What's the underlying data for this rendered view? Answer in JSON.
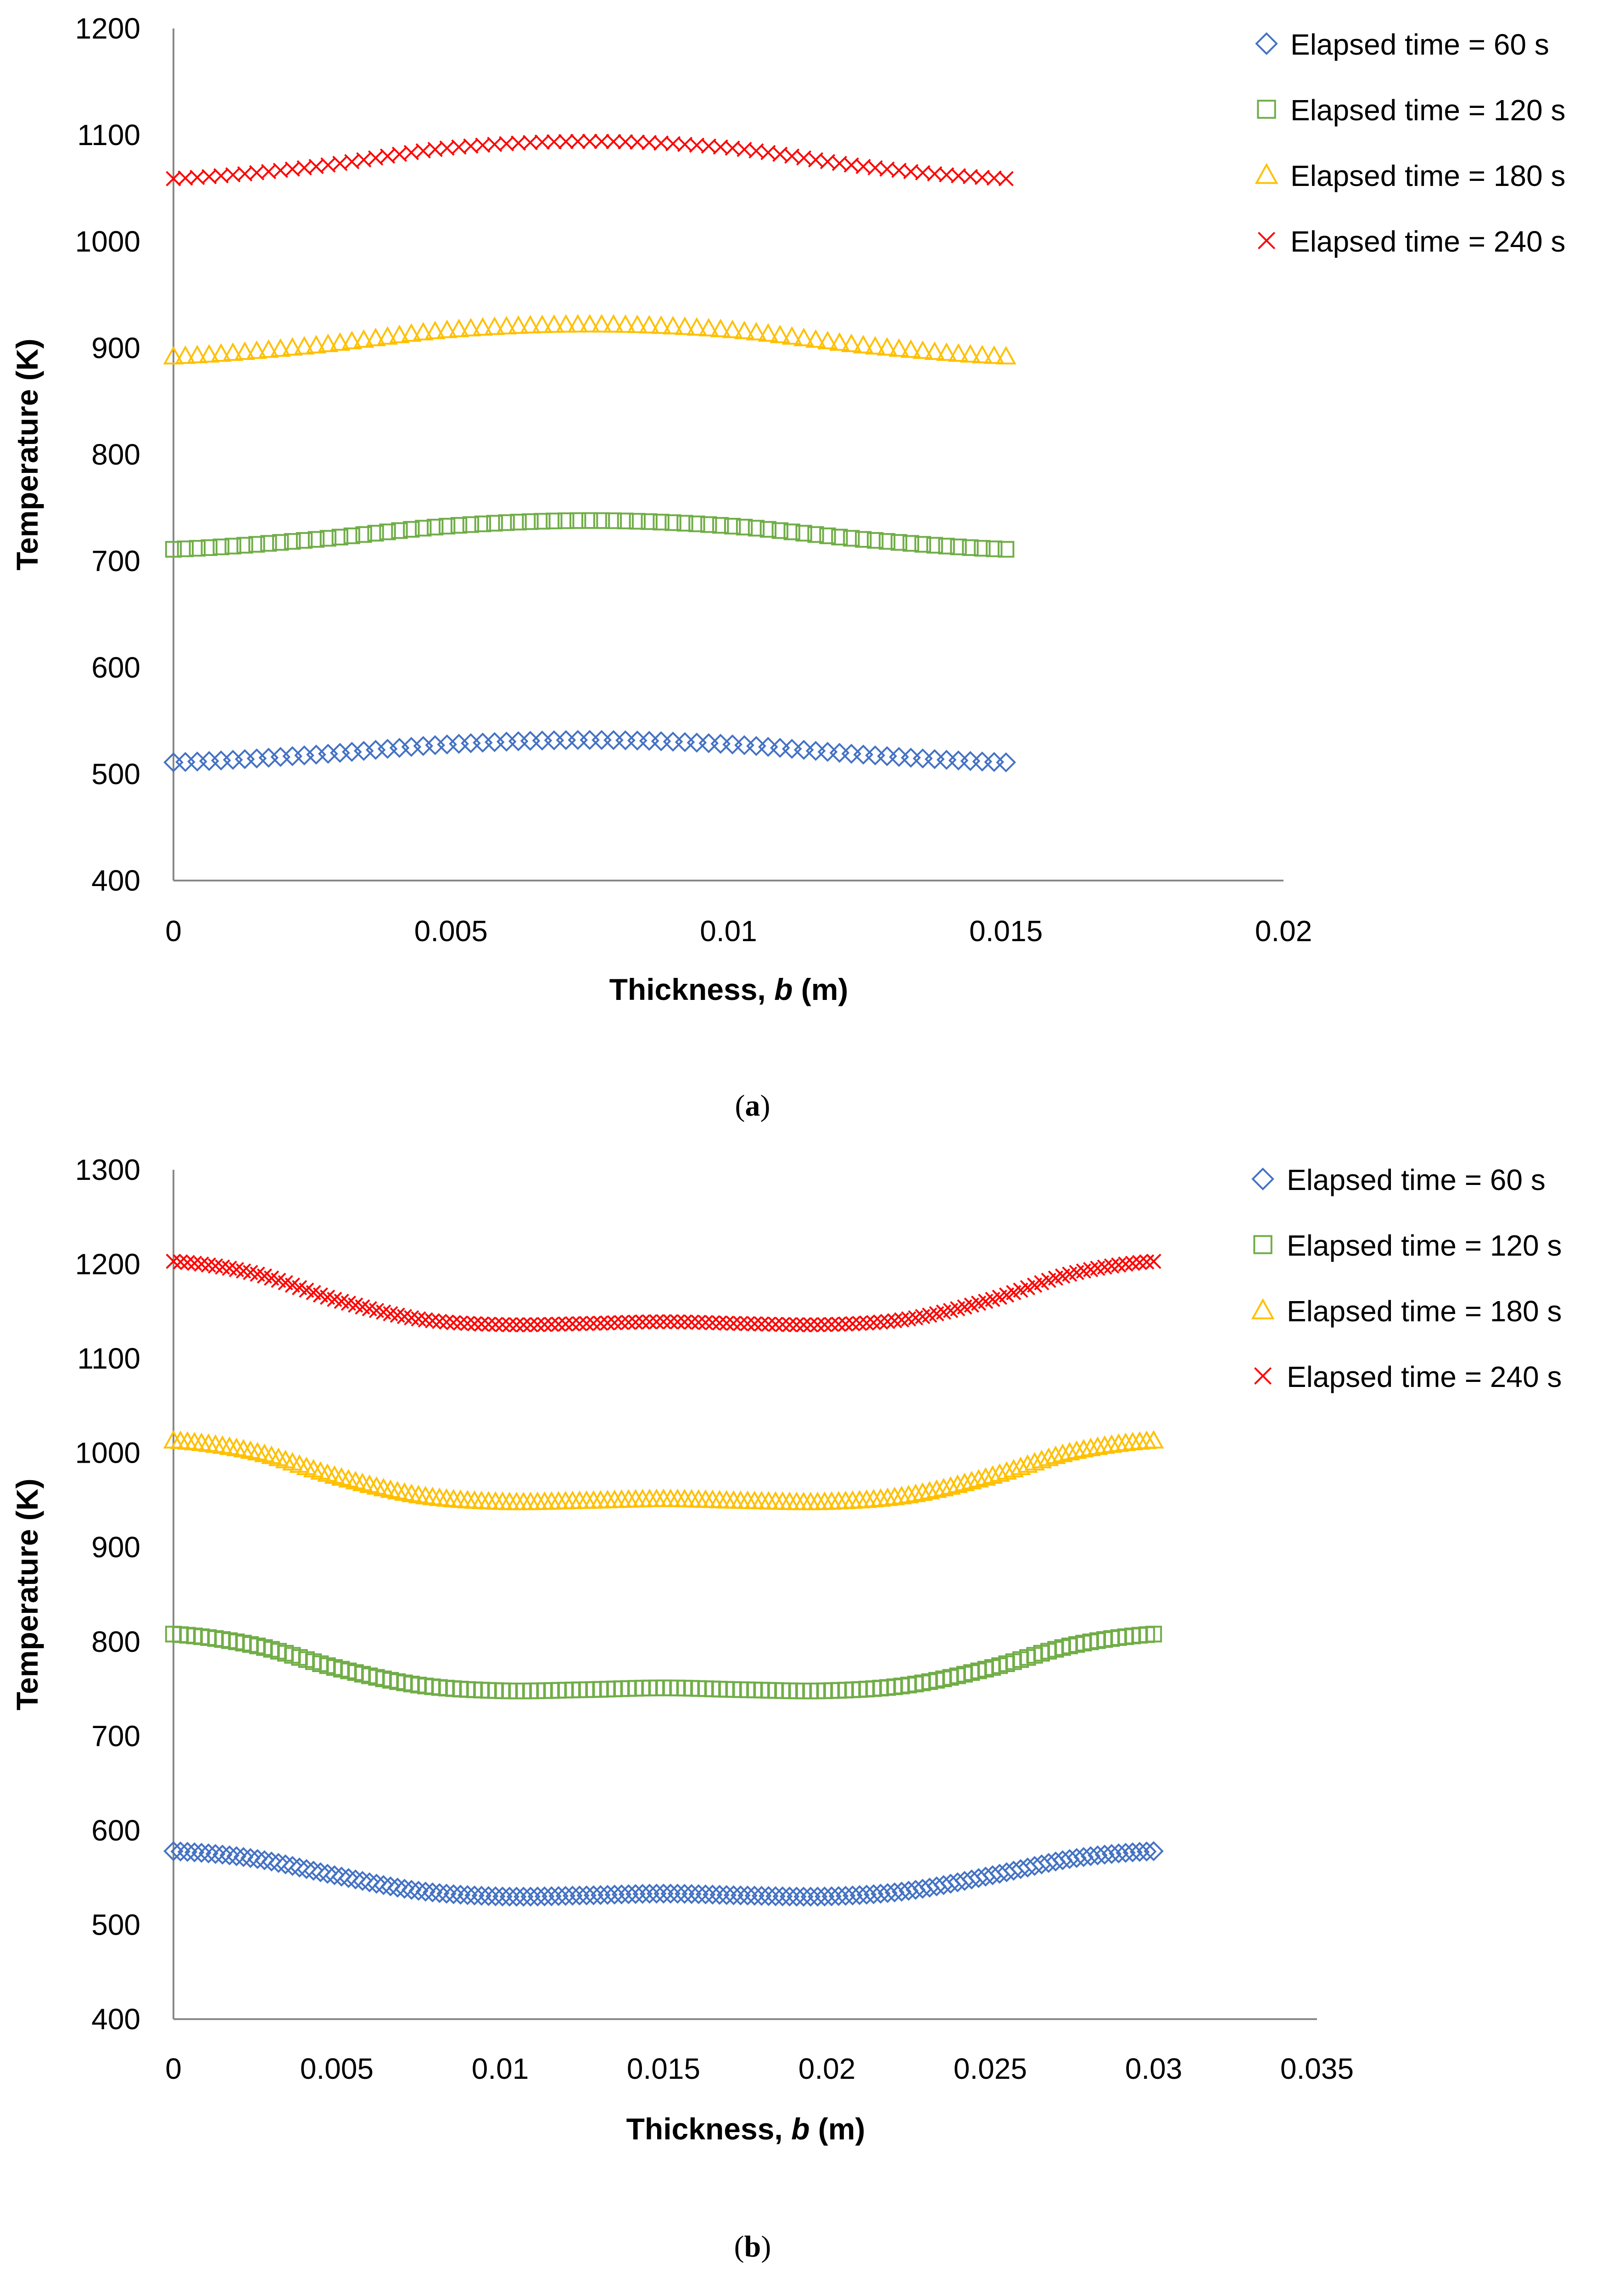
{
  "chart_data": [
    {
      "type": "scatter",
      "panel_label": "a",
      "title": "",
      "xlabel": "Thickness, b (m)",
      "xlabel_parts": [
        "Thickness, ",
        "b",
        " (m)"
      ],
      "ylabel": "Temperature (K)",
      "xlim": [
        0,
        0.02
      ],
      "ylim": [
        400,
        1200
      ],
      "xticks": [
        "0",
        "0.005",
        "0.01",
        "0.015",
        "0.02"
      ],
      "yticks": [
        "400",
        "500",
        "600",
        "700",
        "800",
        "900",
        "1000",
        "1100",
        "1200"
      ],
      "x_range_data": [
        0,
        0.015
      ],
      "grid": false,
      "legend_position": "top-right",
      "series": [
        {
          "name": "Elapsed time = 60 s",
          "label": "Elapsed time = 60 s",
          "marker": "diamond",
          "color": "#4472C4",
          "x": [
            0,
            0.0025,
            0.005,
            0.0075,
            0.01,
            0.0125,
            0.015
          ],
          "y": [
            511,
            518,
            528,
            532,
            528,
            518,
            511
          ]
        },
        {
          "name": "Elapsed time = 120 s",
          "label": "Elapsed time = 120 s",
          "marker": "square",
          "color": "#70AD47",
          "x": [
            0,
            0.0025,
            0.005,
            0.0075,
            0.01,
            0.0125,
            0.015
          ],
          "y": [
            711,
            720,
            733,
            738,
            733,
            720,
            711
          ]
        },
        {
          "name": "Elapsed time = 180 s",
          "label": "Elapsed time = 180 s",
          "marker": "triangle",
          "color": "#FFC000",
          "x": [
            0,
            0.0025,
            0.005,
            0.0075,
            0.01,
            0.0125,
            0.015
          ],
          "y": [
            892,
            902,
            917,
            922,
            917,
            902,
            892
          ]
        },
        {
          "name": "Elapsed time = 240 s",
          "label": "Elapsed time = 240 s",
          "marker": "x",
          "color": "#FF0000",
          "x": [
            0,
            0.0025,
            0.005,
            0.0075,
            0.01,
            0.0125,
            0.015
          ],
          "y": [
            1059,
            1070,
            1088,
            1094,
            1088,
            1070,
            1059
          ]
        }
      ]
    },
    {
      "type": "scatter",
      "panel_label": "b",
      "title": "",
      "xlabel": "Thickness, b (m)",
      "xlabel_parts": [
        "Thickness, ",
        "b",
        " (m)"
      ],
      "ylabel": "Temperature (K)",
      "xlim": [
        0,
        0.035
      ],
      "ylim": [
        400,
        1300
      ],
      "xticks": [
        "0",
        "0.005",
        "0.01",
        "0.015",
        "0.02",
        "0.025",
        "0.03",
        "0.035"
      ],
      "yticks": [
        "400",
        "500",
        "600",
        "700",
        "800",
        "900",
        "1000",
        "1100",
        "1200",
        "1300"
      ],
      "x_range_data": [
        0,
        0.03
      ],
      "grid": false,
      "legend_position": "top-right",
      "series": [
        {
          "name": "Elapsed time = 60 s",
          "label": "Elapsed time = 60 s",
          "marker": "diamond",
          "color": "#4472C4",
          "x": [
            0,
            0.0025,
            0.005,
            0.0075,
            0.01,
            0.0125,
            0.015,
            0.0175,
            0.02,
            0.0225,
            0.025,
            0.0275,
            0.03
          ],
          "y": [
            578,
            570,
            552,
            536,
            530,
            531,
            533,
            531,
            530,
            536,
            552,
            570,
            578
          ]
        },
        {
          "name": "Elapsed time = 120 s",
          "label": "Elapsed time = 120 s",
          "marker": "square",
          "color": "#70AD47",
          "x": [
            0,
            0.0025,
            0.005,
            0.0075,
            0.01,
            0.0125,
            0.015,
            0.0175,
            0.02,
            0.0225,
            0.025,
            0.0275,
            0.03
          ],
          "y": [
            808,
            796,
            772,
            754,
            748,
            749,
            751,
            749,
            748,
            754,
            772,
            796,
            808
          ]
        },
        {
          "name": "Elapsed time = 180 s",
          "label": "Elapsed time = 180 s",
          "marker": "triangle",
          "color": "#FFC000",
          "x": [
            0,
            0.0025,
            0.005,
            0.0075,
            0.01,
            0.0125,
            0.015,
            0.0175,
            0.02,
            0.0225,
            0.025,
            0.0275,
            0.03
          ],
          "y": [
            1013,
            1001,
            975,
            955,
            948,
            949,
            951,
            949,
            948,
            955,
            975,
            1001,
            1013
          ]
        },
        {
          "name": "Elapsed time = 240 s",
          "label": "Elapsed time = 240 s",
          "marker": "x",
          "color": "#FF0000",
          "x": [
            0,
            0.0025,
            0.005,
            0.0075,
            0.01,
            0.0125,
            0.015,
            0.0175,
            0.02,
            0.0225,
            0.025,
            0.0275,
            0.03
          ],
          "y": [
            1203,
            1190,
            1162,
            1142,
            1136,
            1137,
            1139,
            1137,
            1136,
            1142,
            1162,
            1190,
            1203
          ]
        }
      ]
    }
  ]
}
